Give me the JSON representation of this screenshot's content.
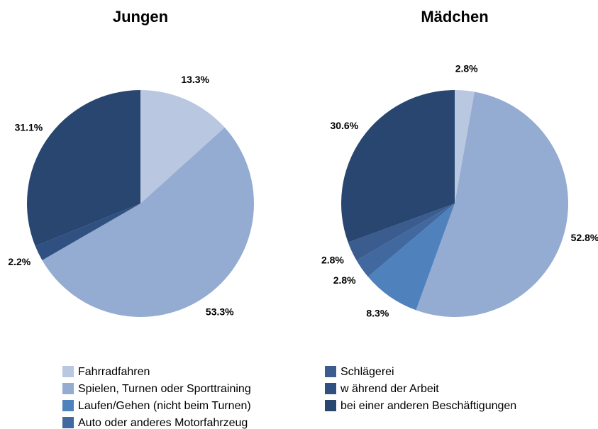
{
  "legend": [
    {
      "name": "Fahrradfahren",
      "color": "#b9c7e0"
    },
    {
      "name": "Spielen, Turnen oder Sporttraining",
      "color": "#94abd2"
    },
    {
      "name": "Laufen/Gehen (nicht beim Turnen)",
      "color": "#4f81bd"
    },
    {
      "name": "Auto oder anderes Motorfahrzeug",
      "color": "#41689f"
    },
    {
      "name": "Schlägerei",
      "color": "#3a5c8e"
    },
    {
      "name": "w ährend der Arbeit",
      "color": "#2f5081"
    },
    {
      "name": "bei einer anderen Beschäftigungen",
      "color": "#284670"
    }
  ],
  "chart_data": [
    {
      "type": "pie",
      "title": "Jungen",
      "values": [
        13.3,
        53.3,
        null,
        null,
        null,
        2.2,
        31.1
      ],
      "value_labels": [
        "13.3%",
        "53.3%",
        null,
        null,
        null,
        "2.2%",
        "31.1%"
      ]
    },
    {
      "type": "pie",
      "title": "Mädchen",
      "values": [
        2.8,
        52.8,
        8.3,
        2.8,
        2.8,
        null,
        30.6
      ],
      "value_labels": [
        "2.8%",
        "52.8%",
        "8.3%",
        "2.8%",
        "2.8%",
        null,
        "30.6%"
      ]
    }
  ]
}
